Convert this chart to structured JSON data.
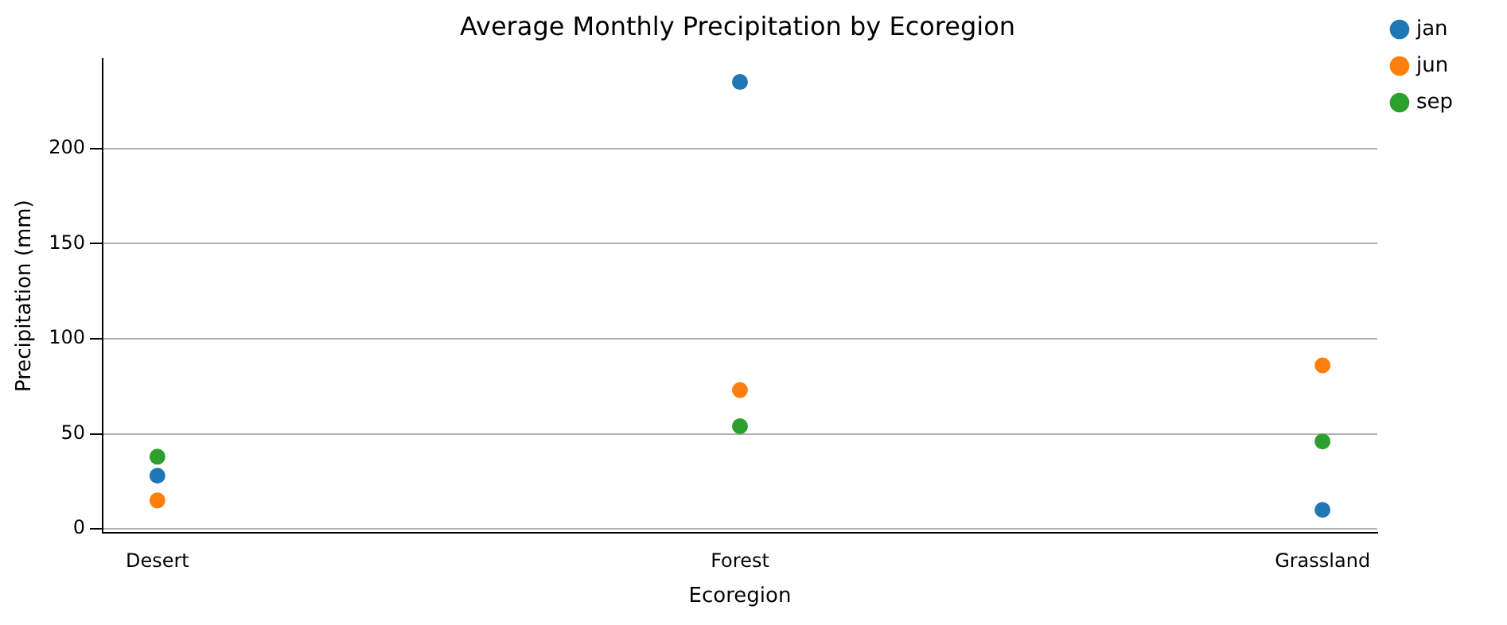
{
  "chart_data": {
    "type": "scatter",
    "title": "Average Monthly Precipitation by Ecoregion",
    "xlabel": "Ecoregion",
    "ylabel": "Precipitation (mm)",
    "categories": [
      "Desert",
      "Forest",
      "Grassland"
    ],
    "series": [
      {
        "name": "jan",
        "color": "#1f77b4",
        "values": [
          28,
          235,
          10
        ]
      },
      {
        "name": "jun",
        "color": "#ff7f0e",
        "values": [
          15,
          73,
          86
        ]
      },
      {
        "name": "sep",
        "color": "#2ca02c",
        "values": [
          38,
          54,
          46
        ]
      }
    ],
    "ylim": [
      -2,
      247
    ],
    "yticks": [
      0,
      50,
      100,
      150,
      200
    ],
    "grid": "y",
    "legend": "top right",
    "marker": "circle"
  }
}
